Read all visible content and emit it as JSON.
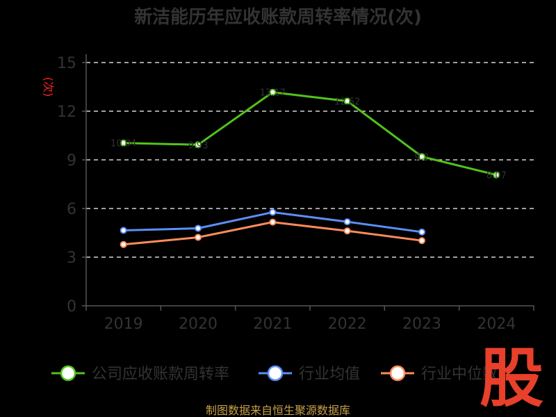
{
  "chart_data": {
    "type": "line",
    "title": "新洁能历年应收账款周转率情况(次)",
    "ylabel": "(次)",
    "xlabel": "",
    "categories": [
      "2019",
      "2020",
      "2021",
      "2022",
      "2023",
      "2024"
    ],
    "y_ticks": [
      "0",
      "3",
      "6",
      "9",
      "12",
      "15"
    ],
    "ylim": [
      0,
      15
    ],
    "grid": true,
    "legend_position": "bottom",
    "series": [
      {
        "name": "公司应收账款周转率",
        "color": "#52c41a",
        "values": [
          10.04,
          9.93,
          13.17,
          12.62,
          9.2,
          8.07
        ]
      },
      {
        "name": "行业均值",
        "color": "#5b8ff9",
        "values": [
          4.65,
          4.78,
          5.77,
          5.18,
          4.55,
          null
        ]
      },
      {
        "name": "行业中位数",
        "color": "#ff8c5a",
        "values": [
          3.78,
          4.22,
          5.16,
          4.62,
          4.02,
          null
        ]
      }
    ]
  },
  "source": "制图数据来自恒生聚源数据库",
  "watermark": "股"
}
